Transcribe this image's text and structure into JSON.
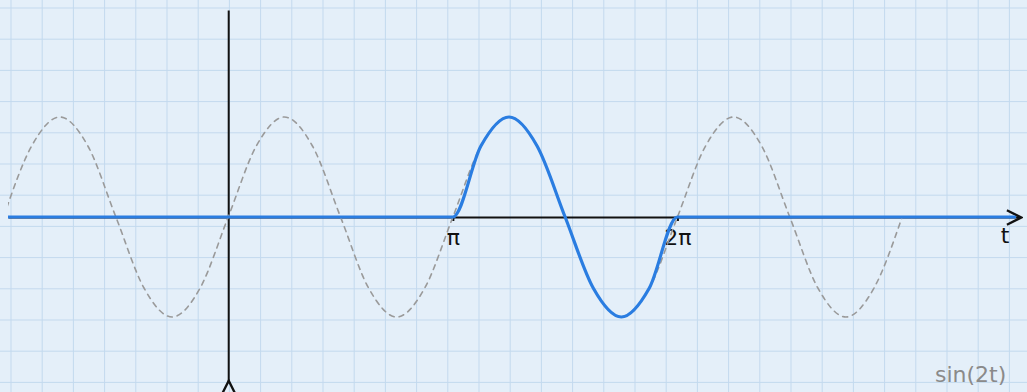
{
  "chart_data": {
    "type": "line",
    "x_label": "t",
    "annotation": "sin(2t)",
    "x": [
      -3.142,
      -2.749,
      -2.356,
      -1.963,
      -1.571,
      -1.178,
      -0.785,
      -0.393,
      0,
      0.393,
      0.785,
      1.178,
      1.571,
      1.963,
      2.356,
      2.749,
      3.142,
      3.534,
      3.927,
      4.32,
      4.712,
      5.105,
      5.498,
      5.89,
      6.283,
      6.676,
      7.069,
      7.461,
      7.854,
      8.247,
      8.639,
      9.032,
      9.425,
      11.0
    ],
    "series": [
      {
        "color": "#9a9a9a",
        "line_style": "dashed",
        "values": [
          0,
          0.71,
          1,
          0.71,
          0,
          -0.71,
          -1,
          -0.71,
          0,
          0.71,
          1,
          0.71,
          0,
          -0.71,
          -1,
          -0.71,
          0,
          0.71,
          1,
          0.71,
          0,
          -0.71,
          -1,
          -0.71,
          0,
          0.71,
          1,
          0.71,
          0,
          -0.71,
          -1,
          -0.71,
          0,
          null
        ]
      },
      {
        "color": "#2a7de1",
        "line_style": "solid",
        "values": [
          0,
          0,
          0,
          0,
          0,
          0,
          0,
          0,
          0,
          0,
          0,
          0,
          0,
          0,
          0,
          0,
          0,
          0.71,
          1,
          0.71,
          0,
          -0.71,
          -1,
          -0.71,
          0,
          0,
          0,
          0,
          0,
          0,
          0,
          0,
          0,
          0
        ]
      }
    ],
    "xlim": [
      -3.08,
      11.06
    ],
    "ylim": [
      -1.65,
      2.07
    ],
    "xticks": [
      {
        "value": 3.142,
        "label": "π"
      },
      {
        "value": 6.283,
        "label": "2π"
      }
    ],
    "tick_labels": "x"
  }
}
